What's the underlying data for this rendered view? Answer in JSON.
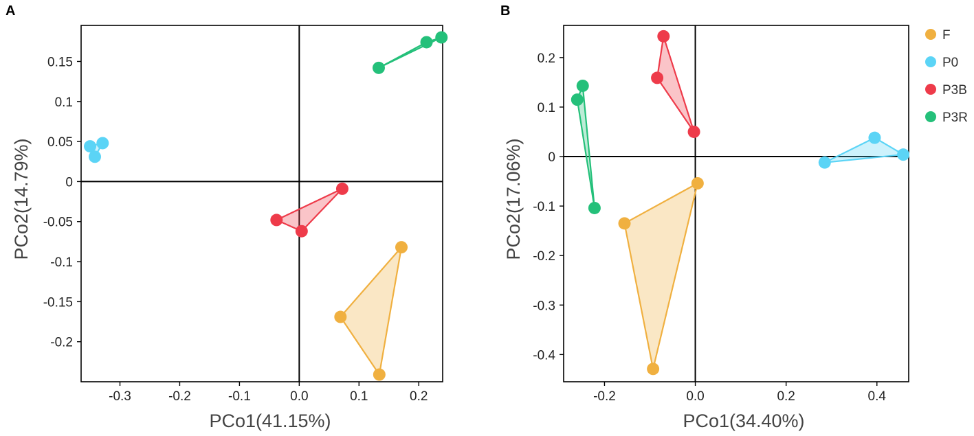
{
  "legend": [
    {
      "label": "F",
      "color": "#F0B040"
    },
    {
      "label": "P0",
      "color": "#5BD4F6"
    },
    {
      "label": "P3B",
      "color": "#EE3B4A"
    },
    {
      "label": "P3R",
      "color": "#24C07A"
    }
  ],
  "chart_data": [
    {
      "type": "scatter",
      "panel_label": "A",
      "xlabel": "PCo1(41.15%)",
      "ylabel": "PCo2(14.79%)",
      "xlim": [
        -0.365,
        0.24
      ],
      "ylim": [
        -0.25,
        0.195
      ],
      "xticks": [
        -0.3,
        -0.2,
        -0.1,
        0,
        0.1,
        0.2
      ],
      "xtick_labels": [
        "-0.3",
        "-0.2",
        "-0.1",
        "0.0",
        "0.1",
        "0.2"
      ],
      "yticks": [
        0.15,
        0.1,
        0.05,
        0,
        -0.05,
        -0.1,
        -0.15,
        -0.2
      ],
      "ytick_labels": [
        "0.15",
        "0.1",
        "0.05",
        "0",
        "-0.05",
        "-0.1",
        "-0.15",
        "-0.2"
      ],
      "series": [
        {
          "name": "F",
          "points": [
            [
              0.171,
              -0.082
            ],
            [
              0.069,
              -0.169
            ],
            [
              0.134,
              -0.241
            ]
          ]
        },
        {
          "name": "P0",
          "points": [
            [
              -0.329,
              0.048
            ],
            [
              -0.35,
              0.044
            ],
            [
              -0.342,
              0.031
            ]
          ]
        },
        {
          "name": "P3B",
          "points": [
            [
              0.072,
              -0.009
            ],
            [
              -0.038,
              -0.048
            ],
            [
              0.004,
              -0.062
            ]
          ]
        },
        {
          "name": "P3R",
          "points": [
            [
              0.238,
              0.18
            ],
            [
              0.213,
              0.174
            ],
            [
              0.133,
              0.142
            ]
          ]
        }
      ]
    },
    {
      "type": "scatter",
      "panel_label": "B",
      "xlabel": "PCo1(34.40%)",
      "ylabel": "PCo2(17.06%)",
      "xlim": [
        -0.29,
        0.47
      ],
      "ylim": [
        -0.455,
        0.265
      ],
      "xticks": [
        -0.2,
        0,
        0.2,
        0.4
      ],
      "xtick_labels": [
        "-0.2",
        "0.0",
        "0.2",
        "0.4"
      ],
      "yticks": [
        0.2,
        0.1,
        0,
        -0.1,
        -0.2,
        -0.3,
        -0.4
      ],
      "ytick_labels": [
        "0.2",
        "0.1",
        "0",
        "-0.1",
        "-0.2",
        "-0.3",
        "-0.4"
      ],
      "series": [
        {
          "name": "F",
          "points": [
            [
              0.005,
              -0.054
            ],
            [
              -0.156,
              -0.135
            ],
            [
              -0.093,
              -0.429
            ]
          ]
        },
        {
          "name": "P0",
          "points": [
            [
              0.395,
              0.038
            ],
            [
              0.458,
              0.004
            ],
            [
              0.285,
              -0.012
            ]
          ]
        },
        {
          "name": "P3B",
          "points": [
            [
              -0.07,
              0.243
            ],
            [
              -0.084,
              0.159
            ],
            [
              -0.003,
              0.05
            ]
          ]
        },
        {
          "name": "P3R",
          "points": [
            [
              -0.248,
              0.143
            ],
            [
              -0.26,
              0.115
            ],
            [
              -0.222,
              -0.104
            ]
          ]
        }
      ]
    }
  ]
}
